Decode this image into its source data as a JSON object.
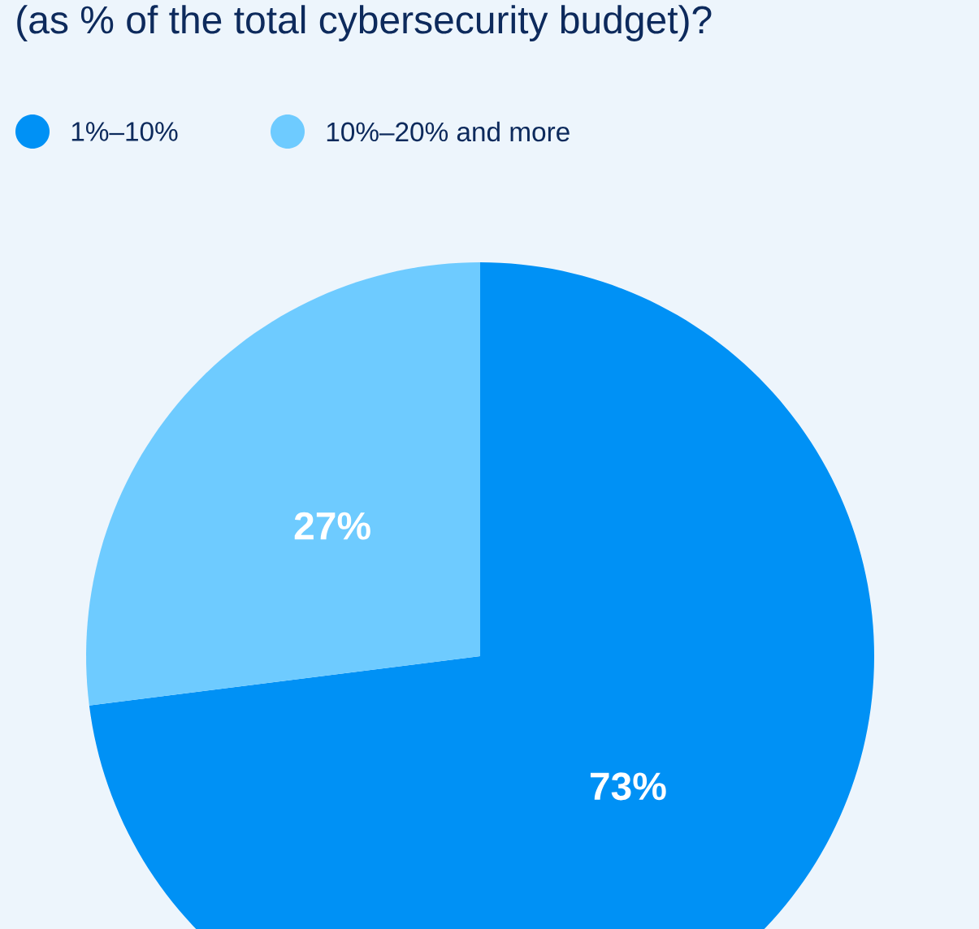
{
  "chart_data": {
    "type": "pie",
    "title": "(as % of the total cybersecurity budget)?",
    "categories": [
      "1%–10%",
      "10%–20% and more"
    ],
    "values": [
      73,
      27
    ],
    "colors": [
      "#0091f5",
      "#6ecbff"
    ],
    "value_labels": [
      "73%",
      "27%"
    ],
    "legend": "top left"
  }
}
